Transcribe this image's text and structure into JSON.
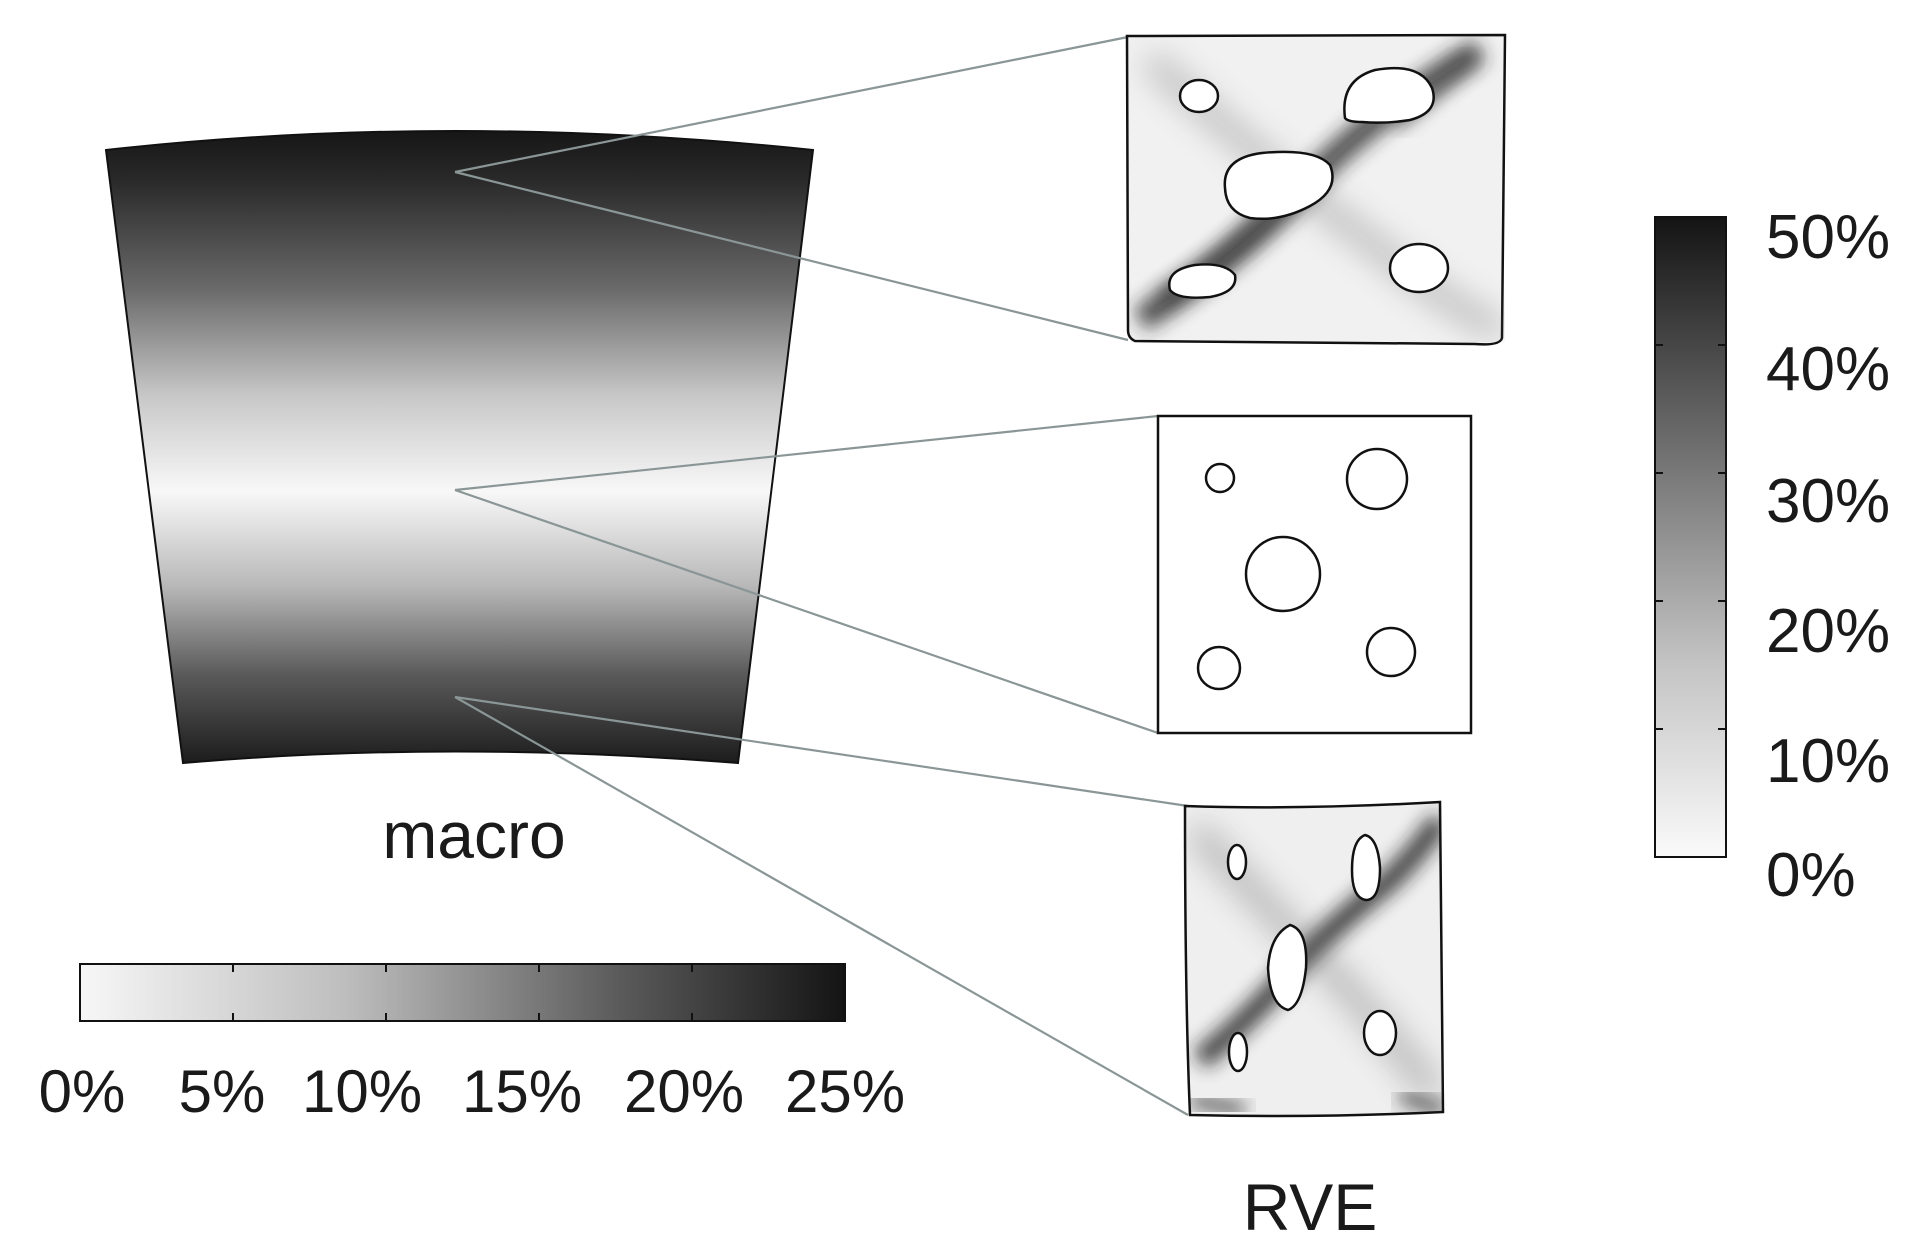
{
  "macro": {
    "label": "macro",
    "colorbar": {
      "min_percent": 0,
      "max_percent": 25,
      "ticks": [
        "0%",
        "5%",
        "10%",
        "15%",
        "20%",
        "25%"
      ],
      "color_low": "#f7f7f7",
      "color_high": "#141414"
    }
  },
  "rve": {
    "label": "RVE",
    "panels": [
      {
        "position": "top",
        "deformed": true
      },
      {
        "position": "middle",
        "deformed": false
      },
      {
        "position": "bottom",
        "deformed": true
      }
    ],
    "colorbar": {
      "min_percent": 0,
      "max_percent": 50,
      "ticks": [
        "50%",
        "40%",
        "30%",
        "20%",
        "10%",
        "0%"
      ],
      "color_low": "#fafafa",
      "color_high": "#141414"
    }
  },
  "colors": {
    "connector": "#8a9696",
    "outline": "#111111"
  }
}
